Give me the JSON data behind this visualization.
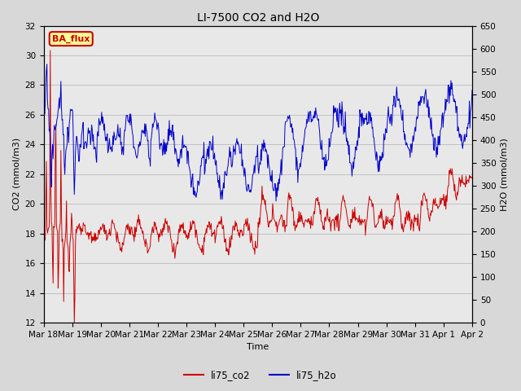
{
  "title": "LI-7500 CO2 and H2O",
  "xlabel": "Time",
  "ylabel_left": "CO2 (mmol/m3)",
  "ylabel_right": "H2O (mmol/m3)",
  "ylim_left": [
    12,
    32
  ],
  "ylim_right": [
    0,
    650
  ],
  "yticks_left": [
    12,
    14,
    16,
    18,
    20,
    22,
    24,
    26,
    28,
    30,
    32
  ],
  "yticks_right": [
    0,
    50,
    100,
    150,
    200,
    250,
    300,
    350,
    400,
    450,
    500,
    550,
    600,
    650
  ],
  "xtick_labels": [
    "Mar 18",
    "Mar 19",
    "Mar 20",
    "Mar 21",
    "Mar 22",
    "Mar 23",
    "Mar 24",
    "Mar 25",
    "Mar 26",
    "Mar 27",
    "Mar 28",
    "Mar 29",
    "Mar 30",
    "Mar 31",
    "Apr 1",
    "Apr 2"
  ],
  "co2_color": "#cc0000",
  "h2o_color": "#0000cc",
  "background_color": "#d8d8d8",
  "plot_bg_color": "#e8e8e8",
  "annotation_text": "BA_flux",
  "annotation_color": "#cc0000",
  "annotation_bg": "#ffff99",
  "legend_co2": "li75_co2",
  "legend_h2o": "li75_h2o",
  "title_fontsize": 10,
  "axis_fontsize": 8,
  "tick_fontsize": 7.5
}
